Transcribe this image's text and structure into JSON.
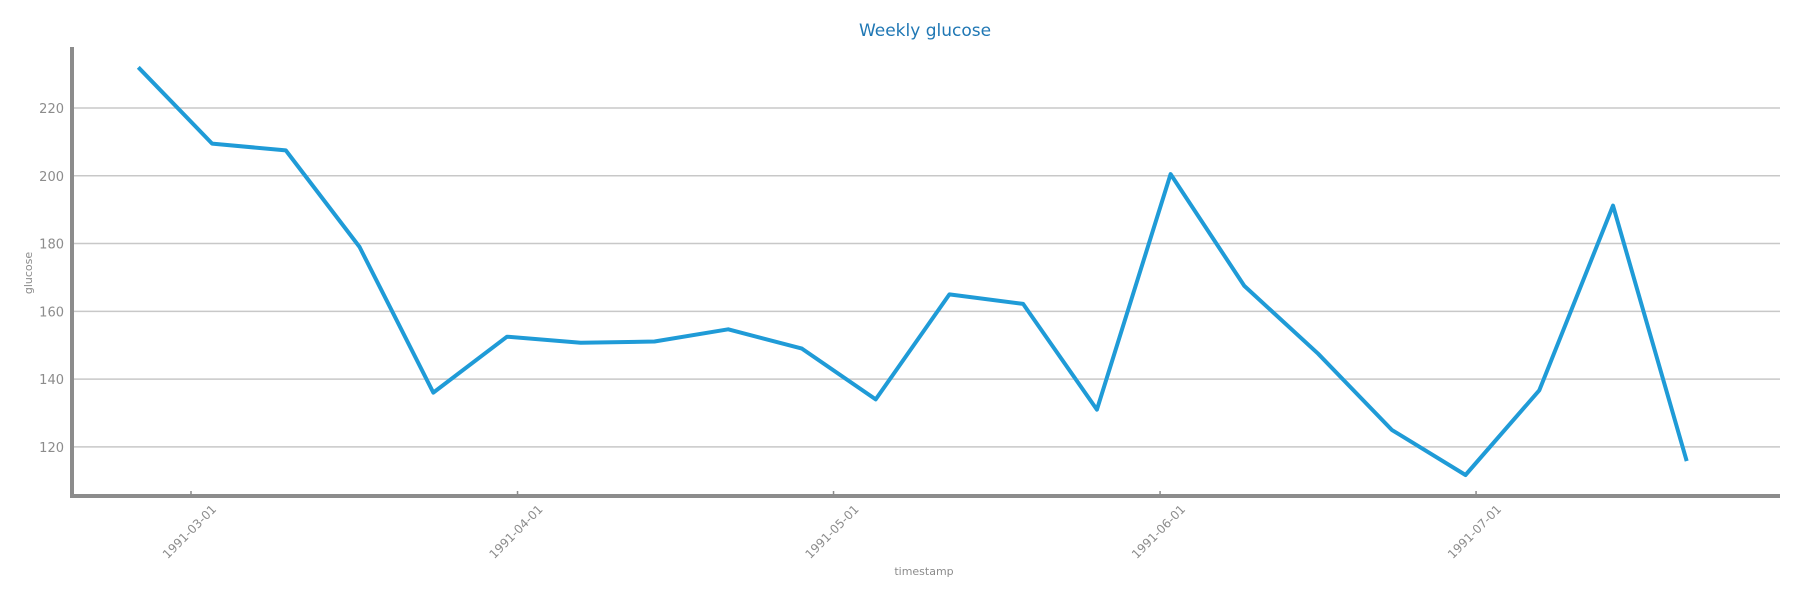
{
  "chart_data": {
    "type": "line",
    "title": "Weekly glucose",
    "xlabel": "timestamp",
    "ylabel": "glucose",
    "grid": "horizontal",
    "ylim": [
      105.5,
      238
    ],
    "x_ticks": [
      "1991-03-01",
      "1991-04-01",
      "1991-05-01",
      "1991-06-01",
      "1991-07-01"
    ],
    "y_ticks": [
      120,
      140,
      160,
      180,
      200,
      220
    ],
    "series": [
      {
        "color": "#1f9bd7",
        "x": [
          "1991-02-24",
          "1991-03-03",
          "1991-03-10",
          "1991-03-17",
          "1991-03-24",
          "1991-03-31",
          "1991-04-07",
          "1991-04-14",
          "1991-04-21",
          "1991-04-28",
          "1991-05-05",
          "1991-05-12",
          "1991-05-19",
          "1991-05-26",
          "1991-06-02",
          "1991-06-09",
          "1991-06-16",
          "1991-06-23",
          "1991-06-30",
          "1991-07-07",
          "1991-07-14",
          "1991-07-21"
        ],
        "values": [
          232,
          209.5,
          207.5,
          179,
          136,
          152.5,
          150.7,
          151.1,
          154.7,
          149,
          134,
          165,
          162.2,
          131,
          200.5,
          167.5,
          147.5,
          125,
          111.7,
          136.7,
          191.2,
          115.8
        ]
      }
    ]
  }
}
